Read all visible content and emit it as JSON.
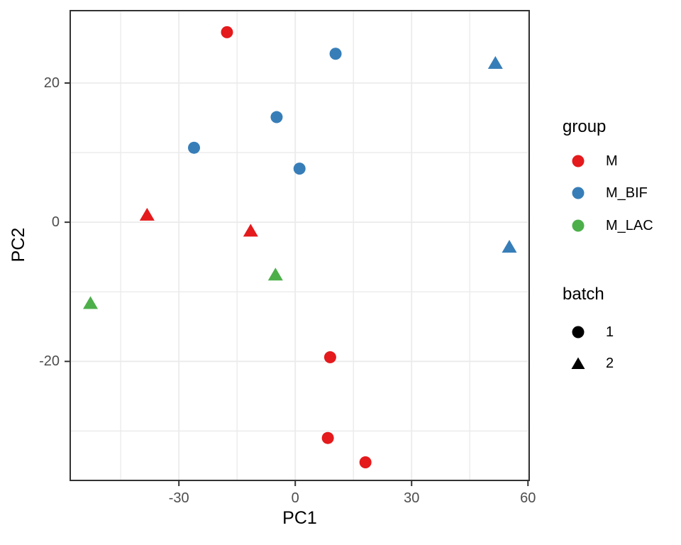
{
  "chart_data": {
    "type": "scatter",
    "xlabel": "PC1",
    "ylabel": "PC2",
    "xlim": [
      -58.2,
      60.5
    ],
    "ylim": [
      -37.2,
      30.5
    ],
    "x_ticks": [
      -30,
      0,
      30,
      60
    ],
    "y_ticks": [
      -20,
      0,
      20
    ],
    "x_minor_ticks": [
      -45,
      -15,
      15,
      45
    ],
    "y_minor_ticks": [
      -30,
      -10,
      10
    ],
    "grid": true,
    "legend_position": "right",
    "series": [
      {
        "name": "M",
        "batch": 1,
        "shape": "circle",
        "color": "#E41A1C",
        "points": [
          [
            -17.6,
            27.3
          ],
          [
            9.0,
            -19.4
          ],
          [
            8.4,
            -31.0
          ],
          [
            18.1,
            -34.5
          ]
        ]
      },
      {
        "name": "M",
        "batch": 2,
        "shape": "triangle",
        "color": "#E41A1C",
        "points": [
          [
            -38.2,
            1.1
          ],
          [
            -11.5,
            -1.2
          ]
        ]
      },
      {
        "name": "M_BIF",
        "batch": 1,
        "shape": "circle",
        "color": "#377EB8",
        "points": [
          [
            10.4,
            24.2
          ],
          [
            -4.8,
            15.1
          ],
          [
            -26.1,
            10.7
          ],
          [
            1.1,
            7.7
          ]
        ]
      },
      {
        "name": "M_BIF",
        "batch": 2,
        "shape": "triangle",
        "color": "#377EB8",
        "points": [
          [
            51.6,
            22.9
          ],
          [
            55.2,
            -3.5
          ]
        ]
      },
      {
        "name": "M_LAC",
        "batch": 2,
        "shape": "triangle",
        "color": "#4DAF4A",
        "points": [
          [
            -5.1,
            -7.5
          ],
          [
            -52.8,
            -11.6
          ]
        ]
      }
    ]
  },
  "legend": {
    "group": {
      "title": "group",
      "items": [
        {
          "label": "M",
          "color": "#E41A1C",
          "shape": "circle"
        },
        {
          "label": "M_BIF",
          "color": "#377EB8",
          "shape": "circle"
        },
        {
          "label": "M_LAC",
          "color": "#4DAF4A",
          "shape": "circle"
        }
      ]
    },
    "batch": {
      "title": "batch",
      "items": [
        {
          "label": "1",
          "color": "#000000",
          "shape": "circle"
        },
        {
          "label": "2",
          "color": "#000000",
          "shape": "triangle"
        }
      ]
    }
  },
  "styles": {
    "background": "#FFFFFF",
    "grid_color": "#EBEBEB",
    "panel_border_color": "#333333",
    "tick_mark_color": "#333333",
    "tick_label_color": "#4D4D4D",
    "axis_title_color": "#000000"
  }
}
